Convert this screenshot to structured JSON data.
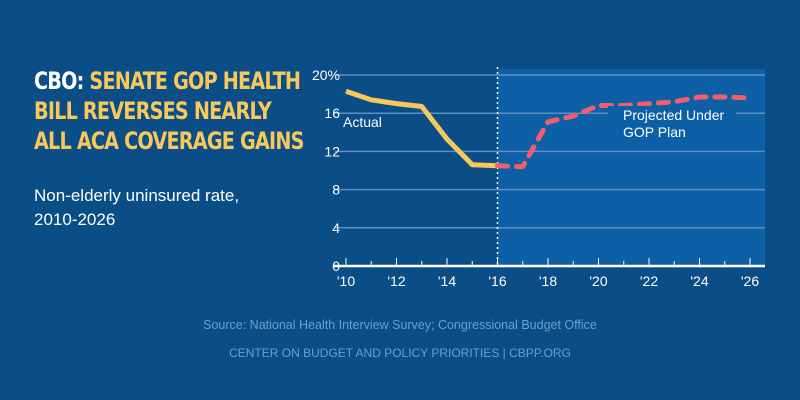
{
  "header": {
    "title_lead": "CBO:",
    "title_rest": "SENATE GOP HEALTH BILL REVERSES NEARLY ALL ACA COVERAGE GAINS",
    "title_lines": [
      "SENATE GOP HEALTH",
      "BILL REVERSES NEARLY",
      "ALL ACA COVERAGE GAINS"
    ],
    "subtitle_lines": [
      "Non-elderly uninsured rate,",
      "2010-2026"
    ]
  },
  "footer": {
    "source": "Source: National Health Interview Survey; Congressional Budget Office",
    "org": "CENTER ON BUDGET AND POLICY PRIORITIES | CBPP.ORG"
  },
  "colors": {
    "background": "#0b4d87",
    "projection_bg": "#0d5fa6",
    "actual": "#f7c85a",
    "projected": "#f25f6a",
    "gridline": "#5c8fc4"
  },
  "chart_data": {
    "type": "line",
    "title": "Non-elderly uninsured rate, 2010-2026",
    "xlabel": "",
    "ylabel": "",
    "xlim": [
      2010,
      2026
    ],
    "ylim": [
      0,
      20
    ],
    "grid": true,
    "y_ticks": [
      0,
      4,
      8,
      12,
      16,
      20
    ],
    "y_tick_labels": [
      "0",
      "4",
      "8",
      "12",
      "16",
      "20%"
    ],
    "x_ticks": [
      2010,
      2012,
      2014,
      2016,
      2018,
      2020,
      2022,
      2024,
      2026
    ],
    "x_tick_labels": [
      "'10",
      "'12",
      "'14",
      "'16",
      "'18",
      "'20",
      "'22",
      "'24",
      "'26"
    ],
    "divider_year": 2016,
    "series": [
      {
        "name": "Actual",
        "style": "solid",
        "x": [
          2010,
          2011,
          2012,
          2013,
          2014,
          2015,
          2016
        ],
        "values": [
          18.3,
          17.4,
          17.0,
          16.7,
          13.3,
          10.6,
          10.5
        ]
      },
      {
        "name": "Projected Under GOP Plan",
        "style": "dashed",
        "x": [
          2016,
          2017,
          2018,
          2019,
          2020,
          2021,
          2022,
          2023,
          2024,
          2025,
          2026
        ],
        "values": [
          10.5,
          10.4,
          15.1,
          15.7,
          16.8,
          16.8,
          17.0,
          17.2,
          17.7,
          17.7,
          17.6
        ]
      }
    ],
    "annotations": [
      {
        "text": "Actual",
        "series": "Actual"
      },
      {
        "text_lines": [
          "Projected Under",
          "GOP Plan"
        ],
        "series": "Projected Under GOP Plan"
      }
    ]
  }
}
